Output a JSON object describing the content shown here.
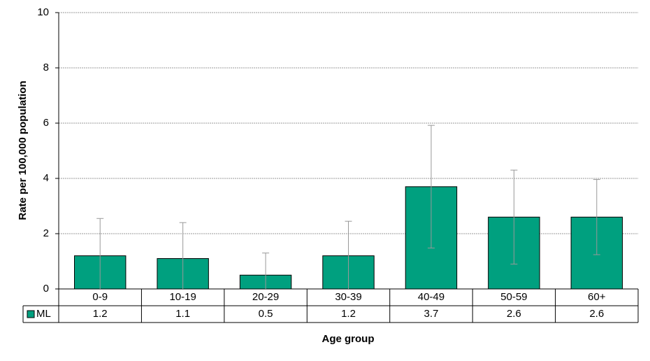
{
  "chart_data": {
    "type": "bar",
    "x_label": "Age group",
    "y_label": "Rate per 100,000 population",
    "categories": [
      "0-9",
      "10-19",
      "20-29",
      "30-39",
      "40-49",
      "50-59",
      "60+"
    ],
    "series": [
      {
        "name": "ML",
        "color": "#00a07f",
        "values": [
          1.2,
          1.1,
          0.5,
          1.2,
          3.7,
          2.6,
          2.6
        ],
        "errors": [
          1.35,
          1.3,
          0.8,
          1.25,
          2.22,
          1.7,
          1.36
        ]
      }
    ],
    "ylim": [
      0,
      10
    ],
    "yticks": [
      0,
      2,
      4,
      6,
      8,
      10
    ],
    "grid": true,
    "data_table": true
  }
}
